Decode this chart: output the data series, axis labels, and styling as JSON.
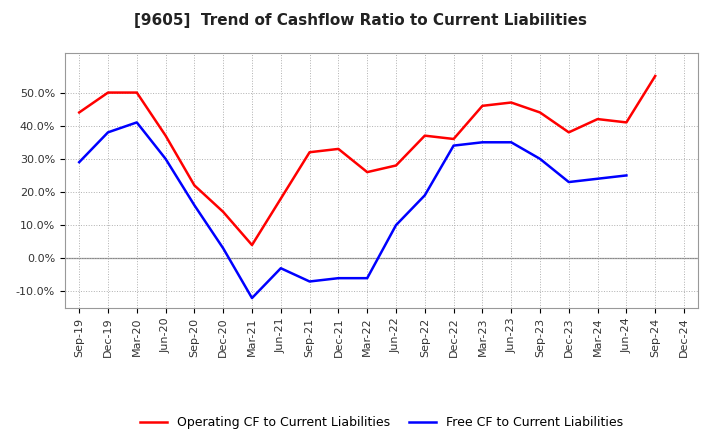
{
  "title": "[9605]  Trend of Cashflow Ratio to Current Liabilities",
  "x_labels": [
    "Sep-19",
    "Dec-19",
    "Mar-20",
    "Jun-20",
    "Sep-20",
    "Dec-20",
    "Mar-21",
    "Jun-21",
    "Sep-21",
    "Dec-21",
    "Mar-22",
    "Jun-22",
    "Sep-22",
    "Dec-22",
    "Mar-23",
    "Jun-23",
    "Sep-23",
    "Dec-23",
    "Mar-24",
    "Jun-24",
    "Sep-24",
    "Dec-24"
  ],
  "operating_cf": [
    44,
    50,
    50,
    37,
    22,
    14,
    4,
    18,
    32,
    33,
    26,
    28,
    37,
    36,
    46,
    47,
    44,
    38,
    42,
    41,
    55,
    null
  ],
  "free_cf": [
    29,
    38,
    41,
    30,
    16,
    3,
    -12,
    -3,
    -7,
    -6,
    -6,
    10,
    19,
    34,
    35,
    35,
    30,
    23,
    24,
    25,
    null,
    null
  ],
  "operating_color": "#ff0000",
  "free_color": "#0000ff",
  "ylim": [
    -15,
    62
  ],
  "yticks": [
    -10,
    0,
    10,
    20,
    30,
    40,
    50
  ],
  "background_color": "#ffffff",
  "grid_color": "#b0b0b0",
  "title_fontsize": 11,
  "legend_fontsize": 9,
  "tick_fontsize": 8
}
